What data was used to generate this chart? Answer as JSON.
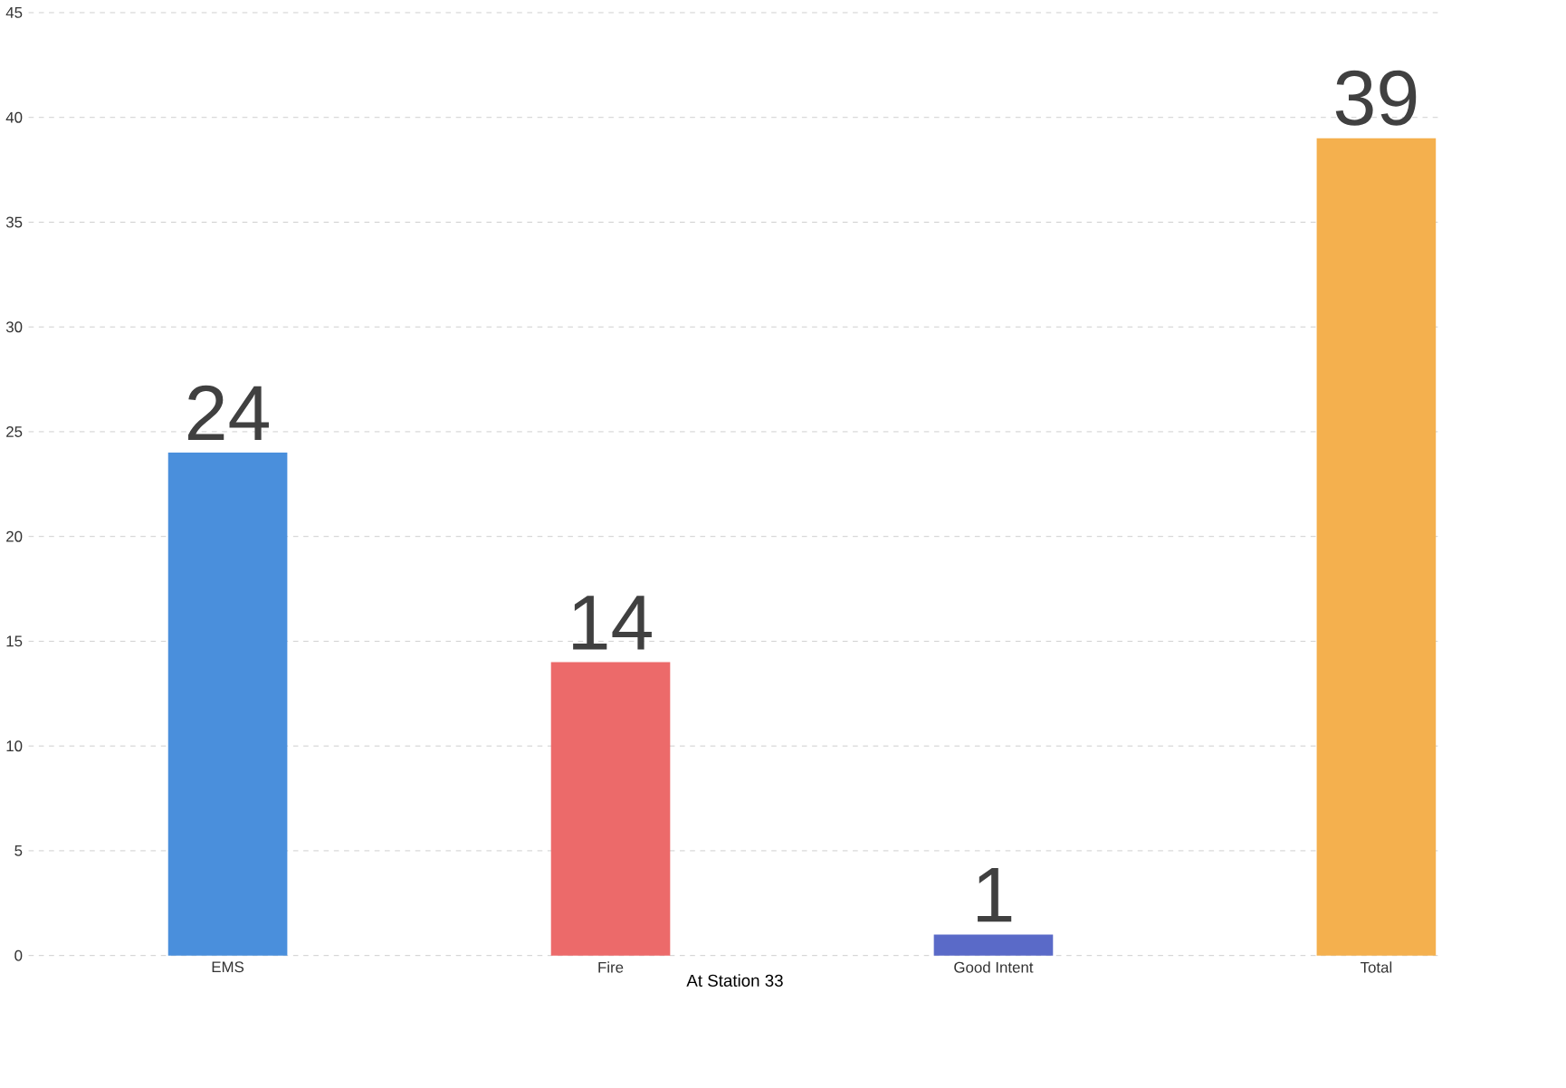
{
  "chart_data": {
    "type": "bar",
    "xlabel": "At Station 33",
    "categories": [
      "EMS",
      "Fire",
      "Good Intent",
      "Total"
    ],
    "values": [
      24,
      14,
      1,
      39
    ],
    "colors": [
      "#4a8fdc",
      "#ec6a6a",
      "#5a6ac8",
      "#f4b04e"
    ],
    "ylim": [
      0,
      45
    ],
    "yticks": [
      0,
      5,
      10,
      15,
      20,
      25,
      30,
      35,
      40,
      45
    ],
    "grid": "y",
    "data_labels": true
  }
}
